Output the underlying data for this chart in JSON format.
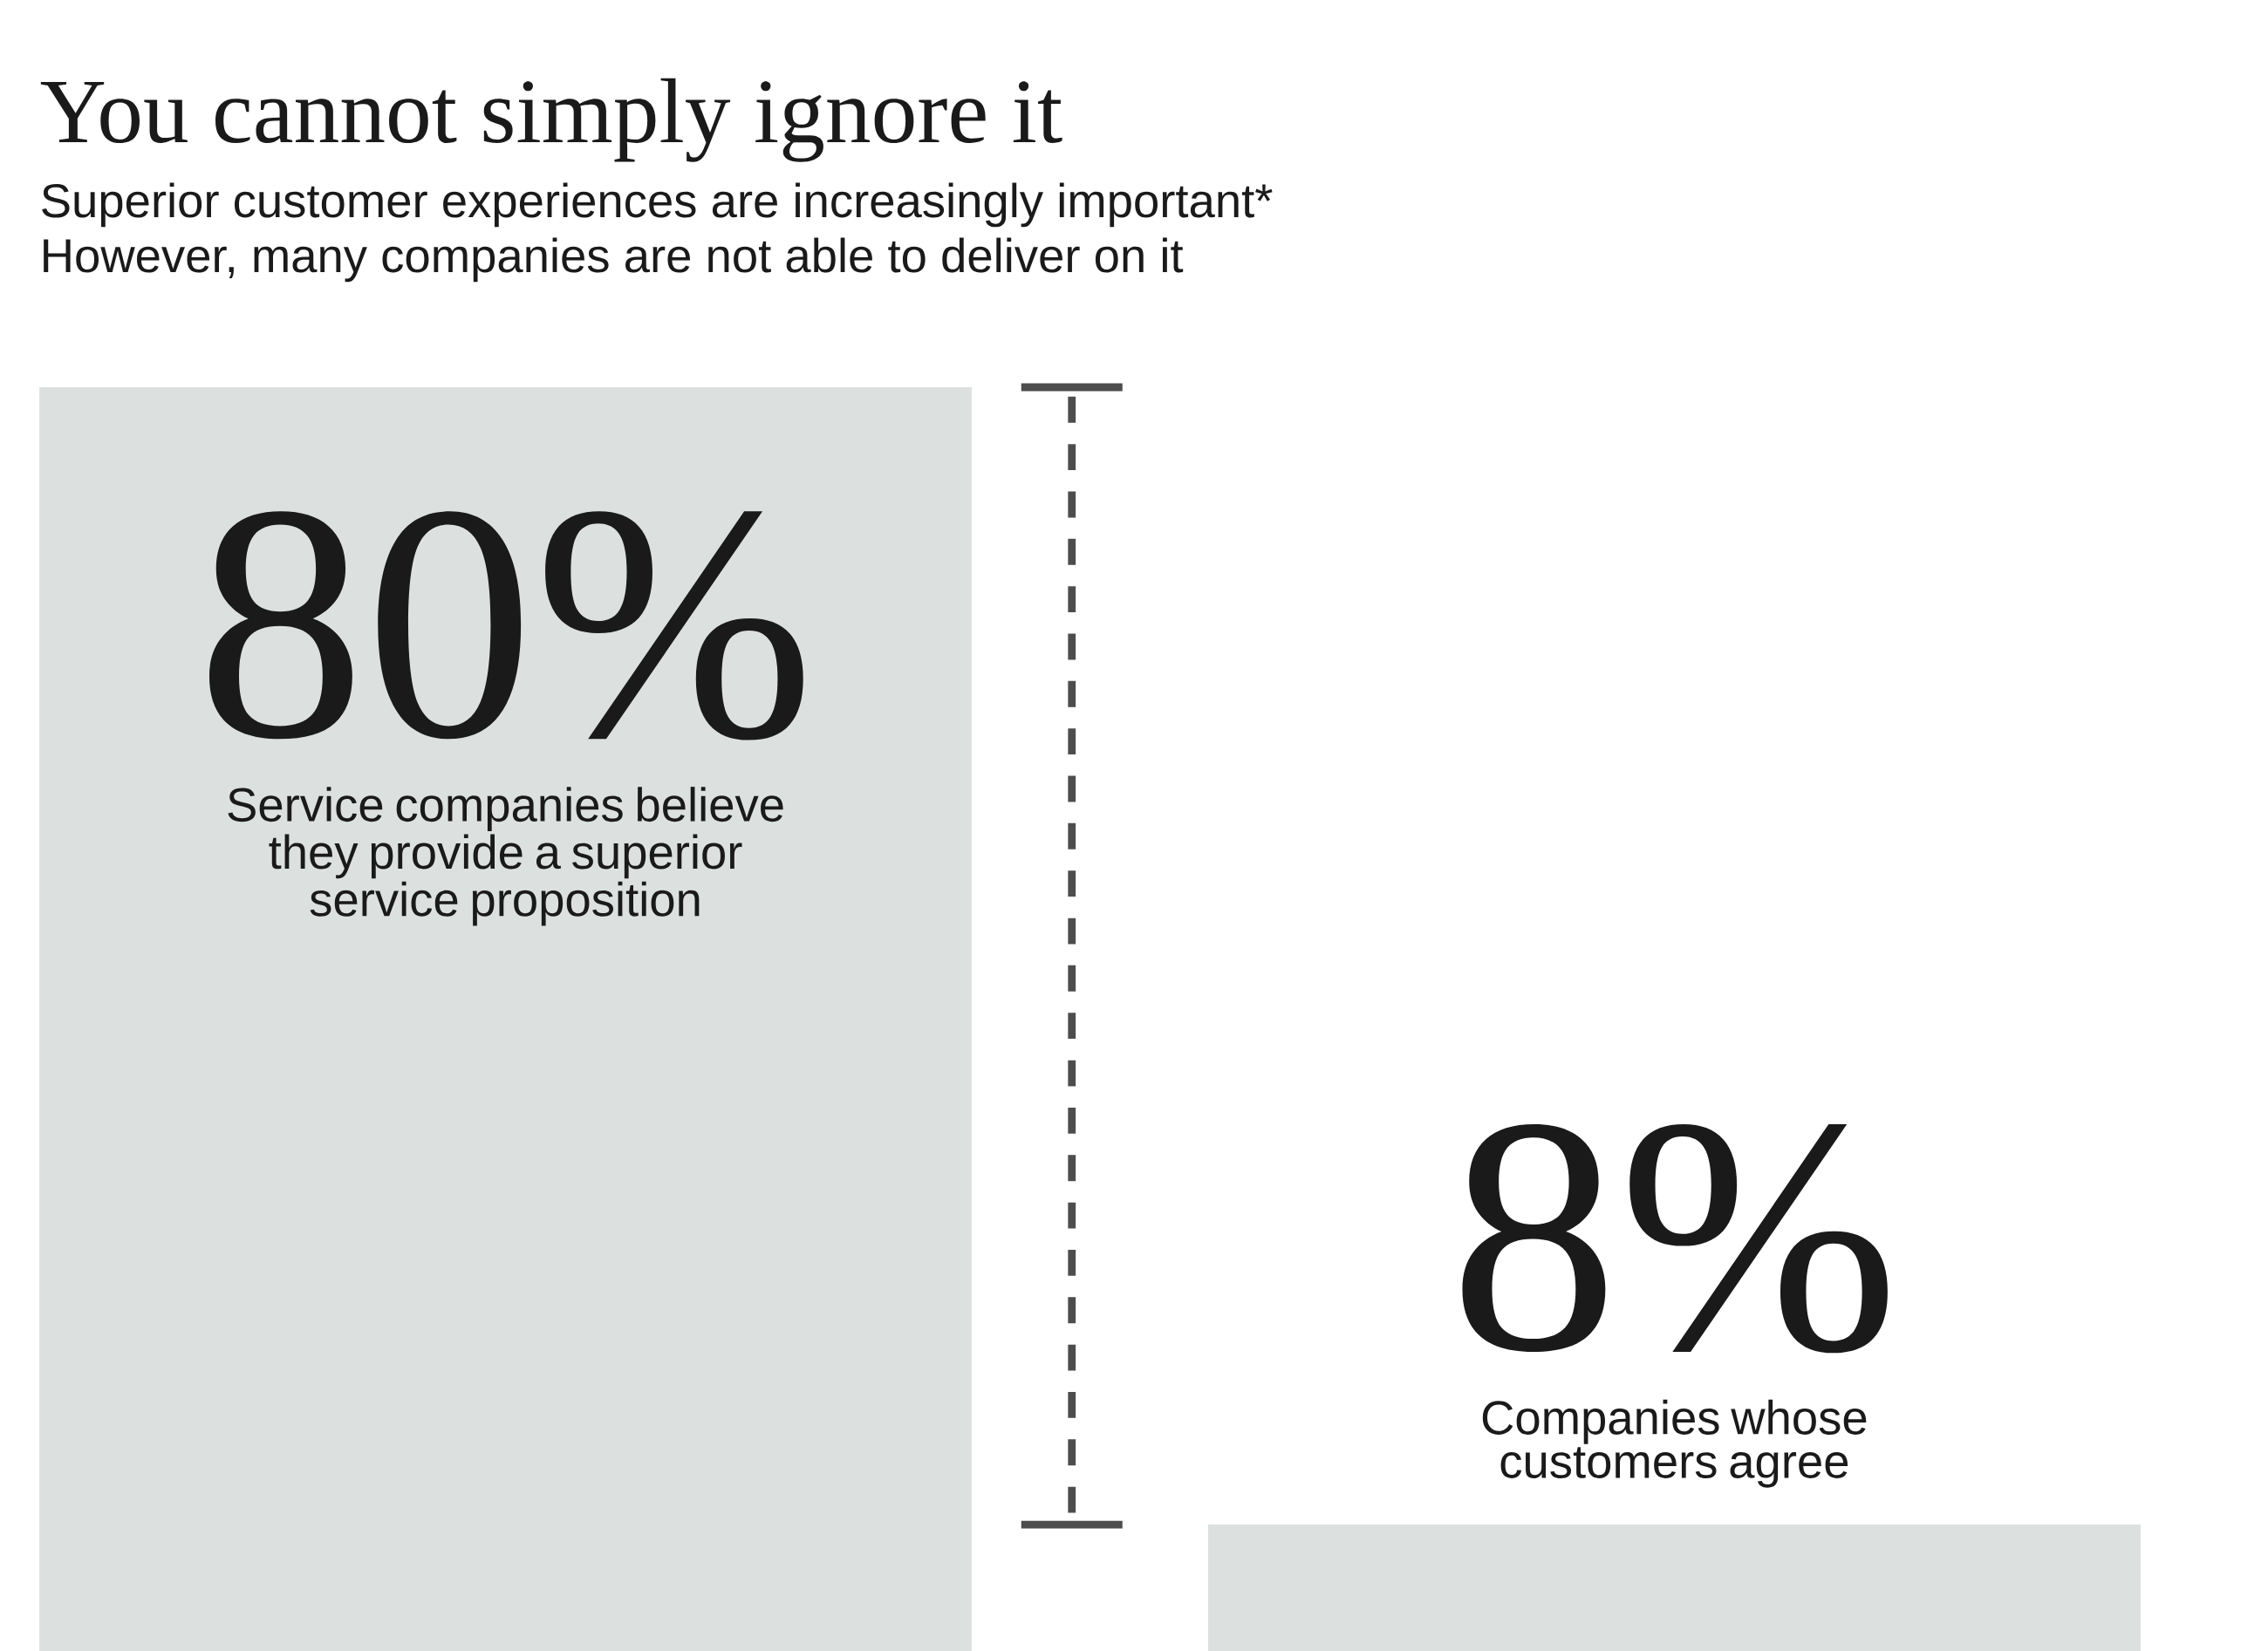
{
  "chart_data": {
    "type": "bar",
    "title": "You cannot simply ignore it",
    "subtitle": "Superior customer experiences are increasingly important*",
    "annotations": [
      "However, many companies are not able to deliver on it"
    ],
    "categories": [
      "Service companies believe they provide a superior service proposition",
      "Companies whose customers agree"
    ],
    "values": [
      80,
      8
    ],
    "value_labels": [
      "80%",
      "8%"
    ],
    "color": "#dce1df"
  }
}
